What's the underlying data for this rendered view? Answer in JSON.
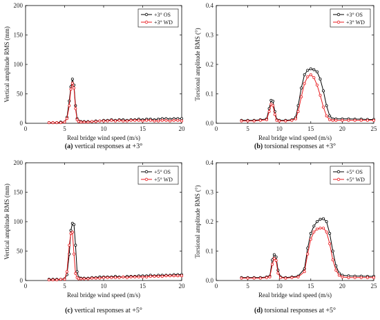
{
  "colors": {
    "os": "#000000",
    "wd": "#e8191d"
  },
  "chart_data": [
    {
      "type": "line",
      "caption_letter": "(a)",
      "caption_text": " vertical responses at +3°",
      "xlabel": "Real bridge wind speed (m/s)",
      "ylabel": "Vertical amplitude RMS (mm)",
      "xlim": [
        0,
        20
      ],
      "ylim": [
        0,
        200
      ],
      "xticks": [
        0,
        5,
        10,
        15,
        20
      ],
      "yticks": [
        0,
        50,
        100,
        150,
        200
      ],
      "ytick_labels": [
        "0",
        "50",
        "100",
        "150",
        "200"
      ],
      "legend_position": "top-right",
      "series": [
        {
          "name": "+3° OS",
          "color": "#000000",
          "x": [
            3.0,
            3.5,
            4.0,
            4.5,
            5.0,
            5.3,
            5.6,
            5.8,
            6.0,
            6.2,
            6.4,
            6.6,
            6.8,
            7.1,
            7.5,
            8.0,
            8.5,
            9.0,
            9.5,
            10.0,
            10.5,
            11.0,
            11.5,
            12.0,
            12.5,
            13.0,
            13.5,
            14.0,
            14.5,
            15.0,
            15.5,
            16.0,
            16.5,
            17.0,
            17.5,
            18.0,
            18.5,
            19.0,
            19.5,
            20.0
          ],
          "y": [
            1,
            1,
            1,
            2,
            2,
            10,
            38,
            62,
            75,
            65,
            30,
            8,
            4,
            3,
            3,
            3,
            3,
            4,
            4,
            5,
            5,
            6,
            5,
            6,
            6,
            5,
            6,
            6,
            7,
            6,
            7,
            7,
            6,
            7,
            8,
            8,
            7,
            8,
            8,
            8
          ]
        },
        {
          "name": "+3° WD",
          "color": "#e8191d",
          "x": [
            3.0,
            3.5,
            4.0,
            4.5,
            5.0,
            5.3,
            5.6,
            5.8,
            6.0,
            6.2,
            6.4,
            6.6,
            6.8,
            7.1,
            7.5,
            8.0,
            8.5,
            9.0,
            9.5,
            10.0,
            10.5,
            11.0,
            11.5,
            12.0,
            12.5,
            13.0,
            13.5,
            14.0,
            14.5,
            15.0,
            15.5,
            16.0,
            16.5,
            17.0,
            17.5,
            18.0,
            18.5,
            19.0,
            19.5,
            20.0
          ],
          "y": [
            1,
            1,
            1,
            1,
            2,
            8,
            30,
            58,
            68,
            60,
            25,
            6,
            3,
            2,
            2,
            2,
            3,
            3,
            4,
            4,
            4,
            5,
            4,
            5,
            4,
            4,
            5,
            5,
            5,
            4,
            5,
            5,
            4,
            4,
            5,
            5,
            4,
            5,
            5,
            4
          ]
        }
      ]
    },
    {
      "type": "line",
      "caption_letter": "(b)",
      "caption_text": " torsional responses at +3°",
      "xlabel": "Real bridge wind speed (m/s)",
      "ylabel": "Torsional amplitude RMS (°)",
      "xlim": [
        0,
        25
      ],
      "ylim": [
        0,
        0.4
      ],
      "xticks": [
        0,
        5,
        10,
        15,
        20,
        25
      ],
      "yticks": [
        0,
        0.1,
        0.2,
        0.3,
        0.4
      ],
      "ytick_labels": [
        "0.0",
        "0.1",
        "0.2",
        "0.3",
        "0.4"
      ],
      "legend_position": "top-right",
      "series": [
        {
          "name": "+3° OS",
          "color": "#000000",
          "x": [
            4.0,
            5.0,
            6.0,
            7.0,
            8.0,
            8.4,
            8.7,
            9.0,
            9.3,
            9.6,
            10.0,
            11.0,
            12.0,
            12.6,
            13.0,
            13.5,
            14.0,
            14.5,
            15.0,
            15.5,
            16.0,
            16.5,
            17.0,
            17.5,
            18.0,
            18.5,
            19.0,
            20.0,
            21.0,
            22.0,
            23.0,
            24.0,
            25.0
          ],
          "y": [
            0.01,
            0.01,
            0.01,
            0.012,
            0.015,
            0.05,
            0.078,
            0.075,
            0.04,
            0.012,
            0.01,
            0.01,
            0.012,
            0.02,
            0.06,
            0.12,
            0.165,
            0.18,
            0.185,
            0.182,
            0.175,
            0.15,
            0.11,
            0.06,
            0.025,
            0.015,
            0.015,
            0.015,
            0.015,
            0.014,
            0.014,
            0.013,
            0.013
          ]
        },
        {
          "name": "+3° WD",
          "color": "#e8191d",
          "x": [
            4.0,
            5.0,
            6.0,
            7.0,
            8.0,
            8.4,
            8.7,
            9.0,
            9.3,
            9.6,
            10.0,
            11.0,
            12.0,
            12.6,
            13.0,
            13.5,
            14.0,
            14.5,
            15.0,
            15.5,
            16.0,
            16.5,
            17.0,
            17.5,
            18.0,
            18.5,
            19.0,
            20.0,
            21.0,
            22.0,
            23.0,
            24.0,
            25.0
          ],
          "y": [
            0.008,
            0.008,
            0.008,
            0.01,
            0.012,
            0.04,
            0.065,
            0.06,
            0.03,
            0.01,
            0.008,
            0.008,
            0.01,
            0.015,
            0.04,
            0.09,
            0.135,
            0.158,
            0.165,
            0.155,
            0.13,
            0.095,
            0.055,
            0.025,
            0.012,
            0.01,
            0.01,
            0.01,
            0.01,
            0.01,
            0.01,
            0.01,
            0.01
          ]
        }
      ]
    },
    {
      "type": "line",
      "caption_letter": "(c)",
      "caption_text": " vertical responses at +5°",
      "xlabel": "Real bridge wind speed (m/s)",
      "ylabel": "Vertical amplitude RMS (mm)",
      "xlim": [
        0,
        20
      ],
      "ylim": [
        0,
        200
      ],
      "xticks": [
        0,
        5,
        10,
        15,
        20
      ],
      "yticks": [
        0,
        50,
        100,
        150,
        200
      ],
      "ytick_labels": [
        "0",
        "50",
        "100",
        "150",
        "200"
      ],
      "legend_position": "top-right",
      "series": [
        {
          "name": "+5° OS",
          "color": "#000000",
          "x": [
            3.0,
            3.5,
            4.0,
            4.5,
            5.0,
            5.3,
            5.6,
            5.8,
            6.0,
            6.2,
            6.4,
            6.6,
            6.8,
            7.1,
            7.5,
            8.0,
            8.5,
            9.0,
            9.5,
            10.0,
            10.5,
            11.0,
            11.5,
            12.0,
            12.5,
            13.0,
            13.5,
            14.0,
            14.5,
            15.0,
            15.5,
            16.0,
            16.5,
            17.0,
            17.5,
            18.0,
            18.5,
            19.0,
            19.5,
            20.0
          ],
          "y": [
            2,
            2,
            2,
            2,
            3,
            10,
            45,
            85,
            97,
            95,
            60,
            15,
            5,
            4,
            4,
            4,
            5,
            5,
            6,
            6,
            6,
            6,
            7,
            6,
            6,
            7,
            7,
            7,
            8,
            8,
            8,
            9,
            8,
            9,
            9,
            9,
            9,
            10,
            10,
            10
          ]
        },
        {
          "name": "+5° WD",
          "color": "#e8191d",
          "x": [
            3.0,
            3.5,
            4.0,
            4.5,
            5.0,
            5.3,
            5.6,
            5.8,
            6.0,
            6.2,
            6.4,
            6.6,
            6.8,
            7.1,
            7.5,
            8.0,
            8.5,
            9.0,
            9.5,
            10.0,
            10.5,
            11.0,
            11.5,
            12.0,
            12.5,
            13.0,
            13.5,
            14.0,
            14.5,
            15.0,
            15.5,
            16.0,
            16.5,
            17.0,
            17.5,
            18.0,
            18.5,
            19.0,
            19.5,
            20.0
          ],
          "y": [
            1,
            1,
            1,
            2,
            2,
            15,
            60,
            80,
            82,
            45,
            12,
            5,
            3,
            3,
            3,
            3,
            4,
            4,
            4,
            5,
            5,
            5,
            5,
            5,
            6,
            5,
            6,
            6,
            6,
            6,
            6,
            7,
            7,
            7,
            7,
            8,
            8,
            8,
            8,
            8
          ]
        }
      ]
    },
    {
      "type": "line",
      "caption_letter": "(d)",
      "caption_text": " torsional responses at +5°",
      "xlabel": "Real bridge wind speed (m/s)",
      "ylabel": "Torsional amplitude RMS (°)",
      "xlim": [
        0,
        25
      ],
      "ylim": [
        0,
        0.4
      ],
      "xticks": [
        0,
        5,
        10,
        15,
        20,
        25
      ],
      "yticks": [
        0,
        0.1,
        0.2,
        0.3,
        0.4
      ],
      "ytick_labels": [
        "0.0",
        "0.1",
        "0.2",
        "0.3",
        "0.4"
      ],
      "legend_position": "top-right",
      "series": [
        {
          "name": "+5° OS",
          "color": "#000000",
          "x": [
            4.0,
            5.0,
            6.0,
            7.0,
            8.0,
            8.5,
            8.9,
            9.2,
            9.5,
            9.8,
            10.2,
            11.0,
            12.0,
            13.0,
            14.0,
            14.5,
            15.0,
            15.5,
            16.0,
            16.5,
            17.0,
            17.5,
            18.0,
            18.5,
            19.0,
            19.5,
            20.0,
            21.0,
            22.0,
            23.0,
            24.0,
            25.0
          ],
          "y": [
            0.01,
            0.01,
            0.01,
            0.01,
            0.012,
            0.015,
            0.07,
            0.088,
            0.08,
            0.035,
            0.012,
            0.01,
            0.012,
            0.015,
            0.04,
            0.11,
            0.16,
            0.185,
            0.2,
            0.208,
            0.21,
            0.2,
            0.16,
            0.1,
            0.05,
            0.025,
            0.018,
            0.016,
            0.015,
            0.015,
            0.014,
            0.014
          ]
        },
        {
          "name": "+5° WD",
          "color": "#e8191d",
          "x": [
            4.0,
            5.0,
            6.0,
            7.0,
            8.0,
            8.5,
            8.9,
            9.2,
            9.5,
            9.8,
            10.2,
            11.0,
            12.0,
            13.0,
            14.0,
            14.5,
            15.0,
            15.5,
            16.0,
            16.5,
            17.0,
            17.5,
            18.0,
            18.5,
            19.0,
            19.5,
            20.0,
            21.0,
            22.0,
            23.0,
            24.0,
            25.0
          ],
          "y": [
            0.008,
            0.008,
            0.008,
            0.008,
            0.01,
            0.012,
            0.055,
            0.075,
            0.068,
            0.025,
            0.01,
            0.008,
            0.01,
            0.012,
            0.03,
            0.09,
            0.14,
            0.165,
            0.175,
            0.178,
            0.178,
            0.165,
            0.125,
            0.07,
            0.035,
            0.018,
            0.012,
            0.01,
            0.01,
            0.01,
            0.01,
            0.01
          ]
        }
      ]
    }
  ]
}
